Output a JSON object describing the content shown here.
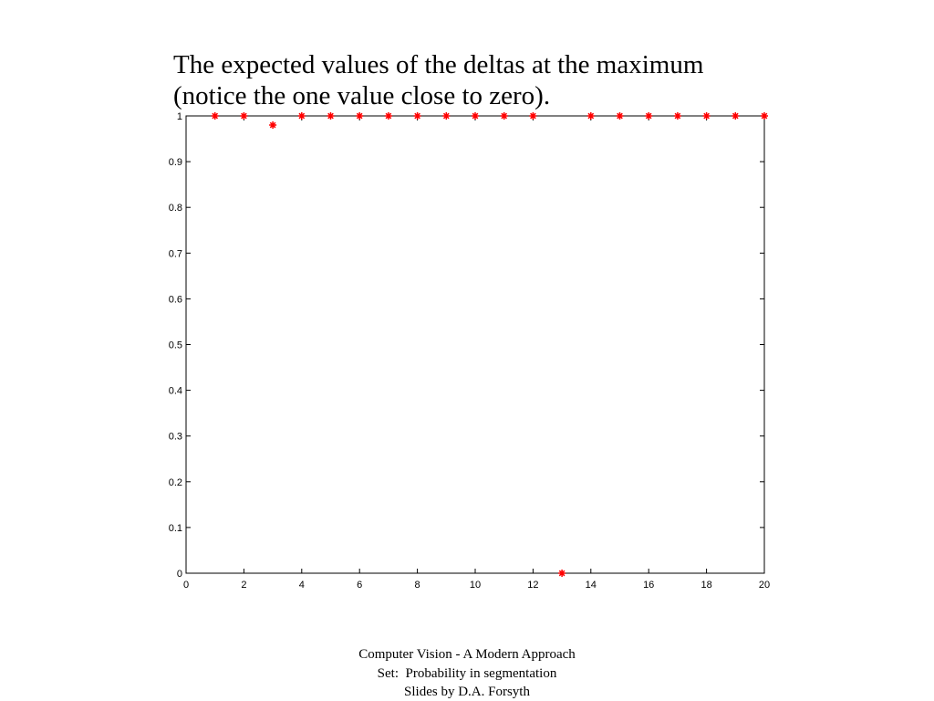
{
  "chart_data": {
    "type": "scatter",
    "title": [
      "The expected values of the deltas at the maximum",
      "(notice the one value close to zero)."
    ],
    "x": [
      1,
      2,
      3,
      4,
      5,
      6,
      7,
      8,
      9,
      10,
      11,
      12,
      13,
      14,
      15,
      16,
      17,
      18,
      19,
      20
    ],
    "values": [
      1,
      1,
      0.98,
      1,
      1,
      1,
      1,
      1,
      1,
      1,
      1,
      1,
      0,
      1,
      1,
      1,
      1,
      1,
      1,
      1
    ],
    "color": "#ff0000",
    "xlim": [
      0,
      20
    ],
    "xticks": [
      0,
      2,
      4,
      6,
      8,
      10,
      12,
      14,
      16,
      18,
      20
    ],
    "ylim": [
      0,
      1
    ],
    "yticks": [
      0,
      0.1,
      0.2,
      0.3,
      0.4,
      0.5,
      0.6,
      0.7,
      0.8,
      0.9,
      1
    ]
  },
  "footer": [
    "Computer Vision - A Modern Approach",
    "Set:  Probability in segmentation",
    "Slides by D.A. Forsyth"
  ]
}
